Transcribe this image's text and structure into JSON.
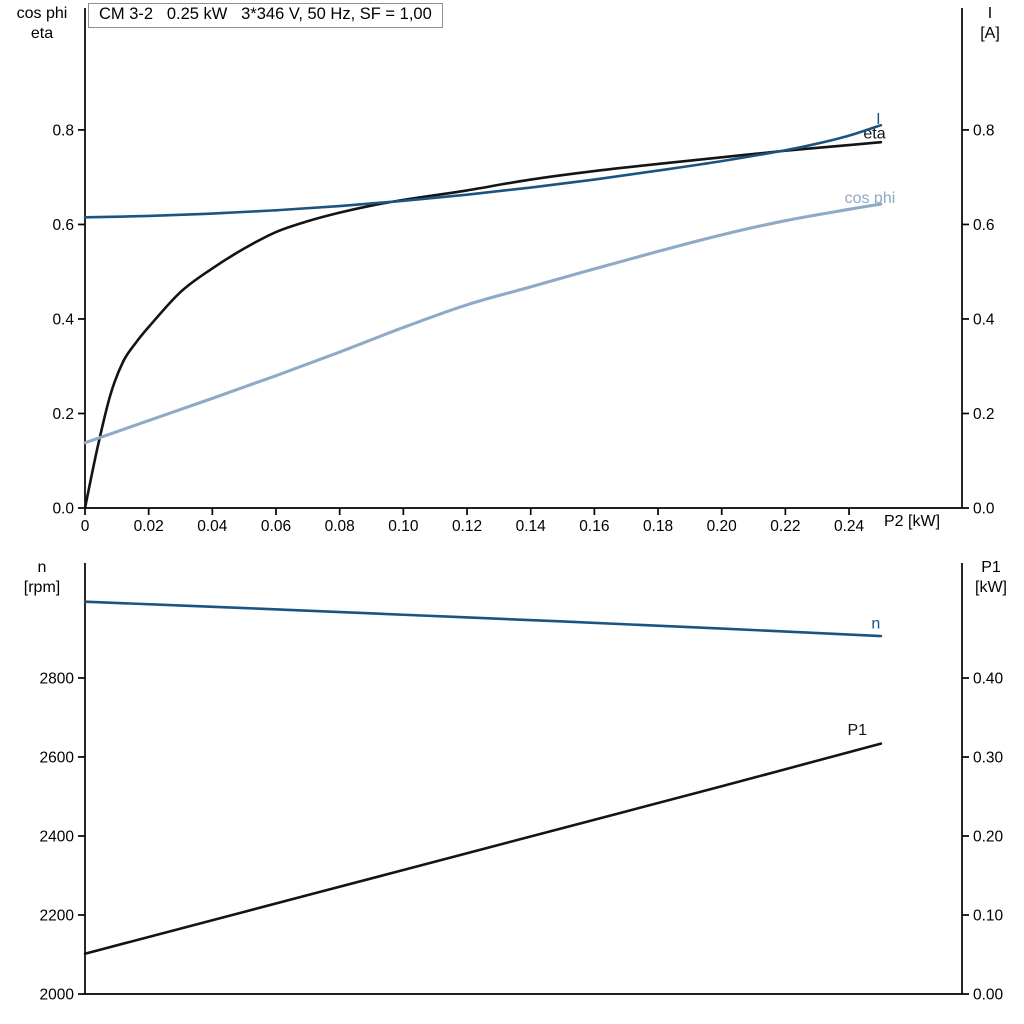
{
  "chart_data": [
    {
      "type": "line",
      "name": "motor-electrical-chart",
      "title": "CM 3-2   0.25 kW   3*346 V, 50 Hz, SF = 1,00",
      "xlabel": "P2 [kW]",
      "axis_left_label": [
        "cos phi",
        "eta"
      ],
      "axis_right_label": [
        "I",
        "[A]"
      ],
      "grid": false,
      "legend_position": "curve-end-labels",
      "xlim": [
        0,
        0.27548
      ],
      "xticks": [
        {
          "v": 0,
          "t": "0"
        },
        {
          "v": 0.02,
          "t": "0.02"
        },
        {
          "v": 0.04,
          "t": "0.04"
        },
        {
          "v": 0.06,
          "t": "0.06"
        },
        {
          "v": 0.08,
          "t": "0.08"
        },
        {
          "v": 0.1,
          "t": "0.10"
        },
        {
          "v": 0.12,
          "t": "0.12"
        },
        {
          "v": 0.14,
          "t": "0.14"
        },
        {
          "v": 0.16,
          "t": "0.16"
        },
        {
          "v": 0.18,
          "t": "0.18"
        },
        {
          "v": 0.2,
          "t": "0.20"
        },
        {
          "v": 0.22,
          "t": "0.22"
        },
        {
          "v": 0.24,
          "t": "0.24"
        }
      ],
      "ylim_left": [
        0,
        1.058
      ],
      "yticks_left": [
        {
          "v": 0.0,
          "t": "0.0"
        },
        {
          "v": 0.2,
          "t": "0.2"
        },
        {
          "v": 0.4,
          "t": "0.4"
        },
        {
          "v": 0.6,
          "t": "0.6"
        },
        {
          "v": 0.8,
          "t": "0.8"
        }
      ],
      "ylim_right": [
        0,
        1.058
      ],
      "yticks_right": [
        {
          "v": 0.0,
          "t": "0.0"
        },
        {
          "v": 0.2,
          "t": "0.2"
        },
        {
          "v": 0.4,
          "t": "0.4"
        },
        {
          "v": 0.6,
          "t": "0.6"
        },
        {
          "v": 0.8,
          "t": "0.8"
        }
      ],
      "series": [
        {
          "name": "eta",
          "label": "eta",
          "axis": "left",
          "color": "#141414",
          "width": 2.6,
          "label_at": [
            0.2445,
            0.782
          ],
          "points": [
            [
              0,
              0
            ],
            [
              0.004,
              0.13
            ],
            [
              0.008,
              0.24
            ],
            [
              0.012,
              0.31
            ],
            [
              0.016,
              0.35
            ],
            [
              0.02,
              0.383
            ],
            [
              0.03,
              0.457
            ],
            [
              0.04,
              0.507
            ],
            [
              0.05,
              0.549
            ],
            [
              0.06,
              0.584
            ],
            [
              0.07,
              0.607
            ],
            [
              0.08,
              0.625
            ],
            [
              0.09,
              0.64
            ],
            [
              0.1,
              0.652
            ],
            [
              0.11,
              0.662
            ],
            [
              0.12,
              0.672
            ],
            [
              0.14,
              0.695
            ],
            [
              0.16,
              0.713
            ],
            [
              0.18,
              0.728
            ],
            [
              0.2,
              0.742
            ],
            [
              0.22,
              0.756
            ],
            [
              0.24,
              0.768
            ],
            [
              0.25,
              0.774
            ]
          ]
        },
        {
          "name": "current",
          "label": "I",
          "axis": "right",
          "color": "#1b5480",
          "width": 2.6,
          "label_at": [
            0.2485,
            0.813
          ],
          "points": [
            [
              0,
              0.615
            ],
            [
              0.02,
              0.618
            ],
            [
              0.04,
              0.623
            ],
            [
              0.06,
              0.63
            ],
            [
              0.08,
              0.639
            ],
            [
              0.1,
              0.65
            ],
            [
              0.12,
              0.663
            ],
            [
              0.14,
              0.678
            ],
            [
              0.16,
              0.695
            ],
            [
              0.18,
              0.714
            ],
            [
              0.2,
              0.734
            ],
            [
              0.22,
              0.757
            ],
            [
              0.23,
              0.771
            ],
            [
              0.24,
              0.788
            ],
            [
              0.25,
              0.81
            ]
          ]
        },
        {
          "name": "cos-phi",
          "label": "cos phi",
          "axis": "left",
          "color": "#8fa9c6",
          "width": 3.1,
          "label_at": [
            0.2386,
            0.645
          ],
          "points": [
            [
              0,
              0.138
            ],
            [
              0.02,
              0.185
            ],
            [
              0.04,
              0.232
            ],
            [
              0.06,
              0.28
            ],
            [
              0.08,
              0.33
            ],
            [
              0.1,
              0.382
            ],
            [
              0.12,
              0.43
            ],
            [
              0.14,
              0.468
            ],
            [
              0.16,
              0.506
            ],
            [
              0.18,
              0.543
            ],
            [
              0.2,
              0.578
            ],
            [
              0.22,
              0.608
            ],
            [
              0.24,
              0.632
            ],
            [
              0.25,
              0.643
            ]
          ]
        }
      ]
    },
    {
      "type": "line",
      "name": "motor-mechanical-chart",
      "title": "",
      "xlabel": "",
      "axis_left_label": [
        "n",
        "[rpm]"
      ],
      "axis_right_label": [
        "P1",
        "[kW]"
      ],
      "grid": false,
      "legend_position": "curve-end-labels",
      "xlim": [
        0,
        0.27548
      ],
      "xticks": [],
      "ylim_left": [
        2000,
        3091
      ],
      "yticks_left": [
        {
          "v": 2000,
          "t": "2000"
        },
        {
          "v": 2200,
          "t": "2200"
        },
        {
          "v": 2400,
          "t": "2400"
        },
        {
          "v": 2600,
          "t": "2600"
        },
        {
          "v": 2800,
          "t": "2800"
        }
      ],
      "ylim_right": [
        0,
        0.5456
      ],
      "yticks_right": [
        {
          "v": 0.0,
          "t": "0.00"
        },
        {
          "v": 0.1,
          "t": "0.10"
        },
        {
          "v": 0.2,
          "t": "0.20"
        },
        {
          "v": 0.3,
          "t": "0.30"
        },
        {
          "v": 0.4,
          "t": "0.40"
        }
      ],
      "series": [
        {
          "name": "speed",
          "label": "n",
          "axis": "left",
          "color": "#1b5480",
          "width": 2.6,
          "label_at": [
            0.247,
            2925
          ],
          "points": [
            [
              0,
              2993
            ],
            [
              0.05,
              2977
            ],
            [
              0.1,
              2960
            ],
            [
              0.15,
              2943
            ],
            [
              0.2,
              2925
            ],
            [
              0.25,
              2906
            ]
          ]
        },
        {
          "name": "p1",
          "label": "P1",
          "axis": "right",
          "color": "#141414",
          "width": 2.6,
          "label_at": [
            0.2395,
            0.328
          ],
          "points": [
            [
              0,
              0.051
            ],
            [
              0.05,
              0.104
            ],
            [
              0.1,
              0.157
            ],
            [
              0.15,
              0.21
            ],
            [
              0.2,
              0.263
            ],
            [
              0.25,
              0.317
            ]
          ]
        }
      ]
    }
  ]
}
